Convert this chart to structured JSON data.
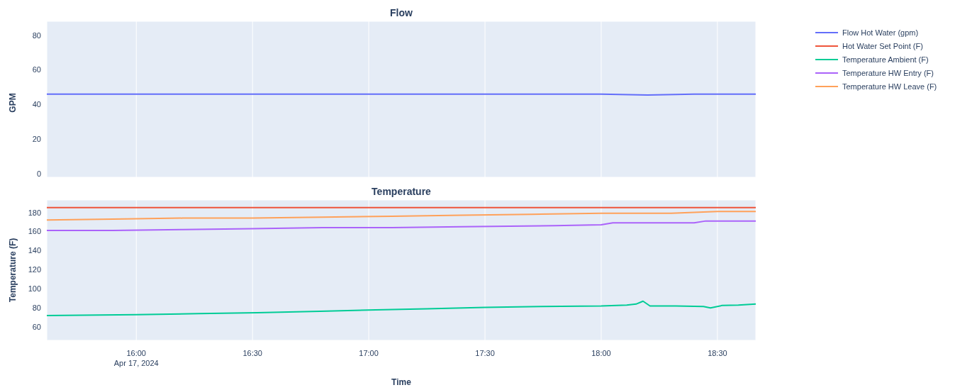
{
  "chart_data": [
    {
      "type": "line",
      "title": "Flow",
      "ylabel": "GPM",
      "legend": "top right",
      "grid": true,
      "tick_labels": "y",
      "xlim": [
        15.615,
        18.665
      ],
      "xticks": [
        {
          "value": 16,
          "label": null
        },
        {
          "value": 16.5,
          "label": null
        },
        {
          "value": 17,
          "label": null
        },
        {
          "value": 17.5,
          "label": null
        },
        {
          "value": 18,
          "label": null
        },
        {
          "value": 18.5,
          "label": null
        }
      ],
      "ylim": [
        -2,
        88
      ],
      "yticks": [
        0,
        20,
        40,
        60,
        80
      ],
      "series": [
        {
          "name": "Flow Hot Water (gpm)",
          "color": "#636efa",
          "x": [
            15.615,
            16.0,
            16.5,
            17.0,
            17.5,
            18.0,
            18.2,
            18.4,
            18.665
          ],
          "values": [
            46,
            46,
            46,
            46,
            46,
            46,
            45.5,
            46,
            46
          ]
        }
      ]
    },
    {
      "type": "line",
      "title": "Temperature",
      "xlabel": "Time",
      "ylabel": "Temperature (F)",
      "legend": "top right",
      "grid": true,
      "xlim": [
        15.615,
        18.665
      ],
      "xticks": [
        {
          "value": 16,
          "label": "16:00\nApr 17, 2024"
        },
        {
          "value": 16.5,
          "label": "16:30"
        },
        {
          "value": 17,
          "label": "17:00"
        },
        {
          "value": 17.5,
          "label": "17:30"
        },
        {
          "value": 18,
          "label": "18:00"
        },
        {
          "value": 18.5,
          "label": "18:30"
        }
      ],
      "ylim": [
        46,
        193
      ],
      "yticks": [
        60,
        80,
        100,
        120,
        140,
        160,
        180
      ],
      "series": [
        {
          "name": "Hot Water Set Point (F)",
          "color": "#ef553b",
          "x": [
            15.615,
            18.665
          ],
          "values": [
            185,
            185
          ]
        },
        {
          "name": "Temperature Ambient (F)",
          "color": "#00cc96",
          "x": [
            15.615,
            16.0,
            16.27,
            16.52,
            16.79,
            17.03,
            17.25,
            17.5,
            17.74,
            18.0,
            18.11,
            18.15,
            18.18,
            18.21,
            18.32,
            18.44,
            18.47,
            18.52,
            18.59,
            18.665
          ],
          "values": [
            72,
            73,
            74,
            75,
            76.5,
            78,
            79,
            80.5,
            81.5,
            82,
            83,
            84,
            87,
            82,
            82,
            81.5,
            80,
            82.5,
            83,
            84
          ]
        },
        {
          "name": "Temperature HW Entry (F)",
          "color": "#ab63fa",
          "x": [
            15.615,
            15.9,
            16.2,
            16.5,
            16.8,
            17.1,
            17.4,
            17.8,
            18.0,
            18.05,
            18.4,
            18.45,
            18.665
          ],
          "values": [
            161,
            161,
            162,
            163,
            164,
            164,
            165,
            166,
            167,
            169,
            169,
            171,
            171
          ]
        },
        {
          "name": "Temperature HW Leave (F)",
          "color": "#ffa15a",
          "x": [
            15.615,
            15.9,
            16.2,
            16.5,
            16.8,
            17.1,
            17.4,
            17.7,
            18.0,
            18.3,
            18.5,
            18.665
          ],
          "values": [
            172,
            173,
            174,
            174,
            175,
            176,
            177,
            178,
            179,
            179,
            181,
            181
          ]
        }
      ]
    }
  ]
}
